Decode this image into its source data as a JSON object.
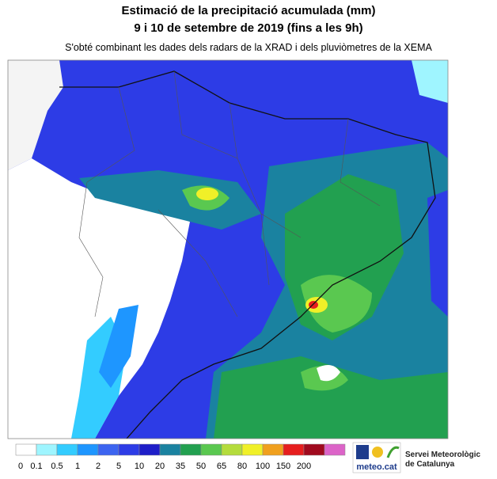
{
  "header": {
    "title_lines": [
      "Estimació de la precipitació acumulada (mm)",
      "9 i 10 de setembre de 2019 (fins a les 9h)"
    ],
    "subtitle": "S'obté combinant les dades dels radars de la XRAD i dels pluviòmetres de la XEMA"
  },
  "legend": {
    "labels": [
      0,
      0.1,
      0.5,
      1,
      2,
      5,
      10,
      20,
      35,
      50,
      65,
      80,
      100,
      150,
      200
    ],
    "colors": [
      "#ffffff",
      "#9ff5ff",
      "#33ccff",
      "#1e96ff",
      "#3c64f0",
      "#2d3ce6",
      "#1e1ec8",
      "#1a82a0",
      "#22a050",
      "#5ac850",
      "#b4dc3c",
      "#f0f028",
      "#f0a01e",
      "#e61e1e",
      "#a00a1e",
      "#dc64c8"
    ]
  },
  "logo": {
    "brand": "meteo.cat",
    "org_lines": [
      "Servei Meteorològic",
      "de Catalunya"
    ]
  }
}
